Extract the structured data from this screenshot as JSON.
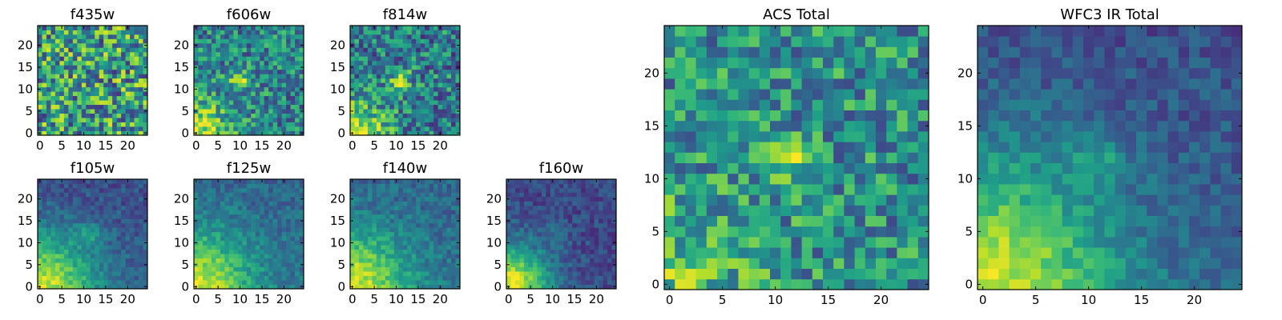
{
  "chart_data": [
    {
      "type": "heatmap",
      "title": "f435w",
      "xticks": [
        0,
        5,
        10,
        15,
        20
      ],
      "yticks": [
        0,
        5,
        10,
        15,
        20
      ],
      "xlim": [
        -0.5,
        24.5
      ],
      "ylim": [
        -0.5,
        24.5
      ],
      "grid": false,
      "colormap": "viridis",
      "data_pattern": "uniform-noise, no clear source"
    },
    {
      "type": "heatmap",
      "title": "f606w",
      "xticks": [
        0,
        5,
        10,
        15,
        20
      ],
      "yticks": [
        0,
        5,
        10,
        15,
        20
      ],
      "xlim": [
        -0.5,
        24.5
      ],
      "ylim": [
        -0.5,
        24.5
      ],
      "grid": false,
      "colormap": "viridis",
      "data_pattern": "noise with bright source near (10, 12) and bright lower-left corner"
    },
    {
      "type": "heatmap",
      "title": "f814w",
      "xticks": [
        0,
        5,
        10,
        15,
        20
      ],
      "yticks": [
        0,
        5,
        10,
        15,
        20
      ],
      "xlim": [
        -0.5,
        24.5
      ],
      "ylim": [
        -0.5,
        24.5
      ],
      "grid": false,
      "colormap": "viridis",
      "data_pattern": "noise with bright source near (11, 12) and bright lower-left corner"
    },
    {
      "type": "heatmap",
      "title": "f105w",
      "xticks": [
        0,
        5,
        10,
        15,
        20
      ],
      "yticks": [
        0,
        5,
        10,
        15,
        20
      ],
      "xlim": [
        -0.5,
        24.5
      ],
      "ylim": [
        -0.5,
        24.5
      ],
      "grid": false,
      "colormap": "viridis",
      "data_pattern": "smooth gradient bright at lower-left, faint source near (11, 12)"
    },
    {
      "type": "heatmap",
      "title": "f125w",
      "xticks": [
        0,
        5,
        10,
        15,
        20
      ],
      "yticks": [
        0,
        5,
        10,
        15,
        20
      ],
      "xlim": [
        -0.5,
        24.5
      ],
      "ylim": [
        -0.5,
        24.5
      ],
      "grid": false,
      "colormap": "viridis",
      "data_pattern": "smooth gradient bright at lower-left"
    },
    {
      "type": "heatmap",
      "title": "f140w",
      "xticks": [
        0,
        5,
        10,
        15,
        20
      ],
      "yticks": [
        0,
        5,
        10,
        15,
        20
      ],
      "xlim": [
        -0.5,
        24.5
      ],
      "ylim": [
        -0.5,
        24.5
      ],
      "grid": false,
      "colormap": "viridis",
      "data_pattern": "smooth gradient bright at lower-left"
    },
    {
      "type": "heatmap",
      "title": "f160w",
      "xticks": [
        0,
        5,
        10,
        15,
        20
      ],
      "yticks": [
        0,
        5,
        10,
        15,
        20
      ],
      "xlim": [
        -0.5,
        24.5
      ],
      "ylim": [
        -0.5,
        24.5
      ],
      "grid": false,
      "colormap": "viridis",
      "data_pattern": "darker field, bright lower-left corner"
    },
    {
      "type": "heatmap",
      "title": "ACS Total",
      "xticks": [
        0,
        5,
        10,
        15,
        20
      ],
      "yticks": [
        0,
        5,
        10,
        15,
        20
      ],
      "xlim": [
        -0.5,
        24.5
      ],
      "ylim": [
        -0.5,
        24.5
      ],
      "grid": false,
      "colormap": "viridis",
      "data_pattern": "noise with bright source near (11, 12)"
    },
    {
      "type": "heatmap",
      "title": "WFC3 IR Total",
      "xticks": [
        0,
        5,
        10,
        15,
        20
      ],
      "yticks": [
        0,
        5,
        10,
        15,
        20
      ],
      "xlim": [
        -0.5,
        24.5
      ],
      "ylim": [
        -0.5,
        24.5
      ],
      "grid": false,
      "colormap": "viridis",
      "data_pattern": "smooth gradient bright at lower-left, faint source near (11, 12)"
    }
  ],
  "style": {
    "colormap_stops": [
      "#440154",
      "#482878",
      "#3e4989",
      "#31688e",
      "#26828e",
      "#1f9e89",
      "#35b779",
      "#6ece58",
      "#b5de2b",
      "#fde725"
    ],
    "axis_color": "#000000",
    "background": "#ffffff"
  }
}
